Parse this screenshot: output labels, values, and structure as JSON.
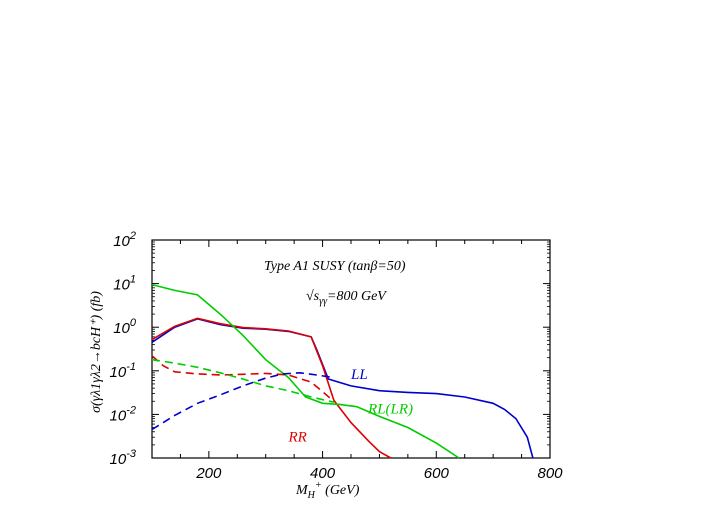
{
  "chart_data": {
    "type": "line",
    "title": "",
    "annotations": {
      "line1": "Type A1 SUSY (tanβ=50)",
      "line2": "√s",
      "line2_sub": "γγ",
      "line2_rest": "=800 GeV"
    },
    "xlabel": {
      "main": "M",
      "sub": "H",
      "sup": "+",
      "rest": " (GeV)"
    },
    "ylabel": "σ(γλ1γλ2→bcH⁺) (fb)",
    "xlim": [
      100,
      800
    ],
    "ylim_log10": [
      -3,
      2
    ],
    "yscale": "log",
    "x_ticks": [
      {
        "value": 200,
        "label": "200"
      },
      {
        "value": 400,
        "label": "400"
      },
      {
        "value": 600,
        "label": "600"
      },
      {
        "value": 800,
        "label": "800"
      }
    ],
    "y_ticks": [
      {
        "exp": 2,
        "base": "10",
        "sup": "2"
      },
      {
        "exp": 1,
        "base": "10",
        "sup": "1"
      },
      {
        "exp": 0,
        "base": "10",
        "sup": "0"
      },
      {
        "exp": -1,
        "base": "10",
        "sup": "-1"
      },
      {
        "exp": -2,
        "base": "10",
        "sup": "-2"
      },
      {
        "exp": -3,
        "base": "10",
        "sup": "-3"
      }
    ],
    "grid": false,
    "series": [
      {
        "name": "LL",
        "color": "#0000cc",
        "dash": false,
        "label_x": 450,
        "label_y": 0.065,
        "x": [
          100,
          140,
          180,
          220,
          260,
          300,
          340,
          380,
          390,
          410,
          450,
          500,
          550,
          600,
          650,
          700,
          720,
          740,
          760,
          770
        ],
        "y": [
          0.45,
          1.0,
          1.55,
          1.15,
          0.95,
          0.9,
          0.8,
          0.6,
          0.3,
          0.065,
          0.045,
          0.035,
          0.032,
          0.03,
          0.025,
          0.018,
          0.013,
          0.008,
          0.003,
          0.001
        ]
      },
      {
        "name": "RR",
        "color": "#dd0000",
        "dash": false,
        "label_x": 340,
        "label_y": 0.0024,
        "x": [
          100,
          140,
          180,
          220,
          260,
          300,
          340,
          380,
          400,
          420,
          450,
          480,
          500,
          520
        ],
        "y": [
          0.52,
          1.05,
          1.6,
          1.2,
          0.98,
          0.92,
          0.82,
          0.6,
          0.13,
          0.021,
          0.0065,
          0.0025,
          0.0014,
          0.001
        ]
      },
      {
        "name": "RL(LR)",
        "color": "#00cc00",
        "dash": false,
        "label_x": 480,
        "label_y": 0.0105,
        "x": [
          100,
          140,
          180,
          220,
          260,
          300,
          340,
          370,
          400,
          430,
          460,
          500,
          550,
          600,
          640
        ],
        "y": [
          9.5,
          7.0,
          5.5,
          2.0,
          0.65,
          0.18,
          0.07,
          0.025,
          0.018,
          0.017,
          0.015,
          0.009,
          0.005,
          0.0022,
          0.001
        ]
      },
      {
        "name": "",
        "color": "#dd0000",
        "dash": true,
        "x": [
          100,
          120,
          140,
          180,
          220,
          260,
          300,
          340,
          380,
          420
        ],
        "y": [
          0.22,
          0.13,
          0.095,
          0.085,
          0.08,
          0.083,
          0.087,
          0.08,
          0.055,
          0.02
        ]
      },
      {
        "name": "",
        "color": "#00cc00",
        "dash": true,
        "x": [
          100,
          140,
          180,
          220,
          260,
          300,
          340,
          380,
          420
        ],
        "y": [
          0.18,
          0.15,
          0.12,
          0.09,
          0.065,
          0.045,
          0.035,
          0.025,
          0.019
        ]
      },
      {
        "name": "",
        "color": "#0000cc",
        "dash": true,
        "x": [
          100,
          140,
          180,
          220,
          260,
          300,
          330,
          360,
          390,
          420
        ],
        "y": [
          0.0045,
          0.0095,
          0.018,
          0.028,
          0.045,
          0.068,
          0.085,
          0.09,
          0.08,
          0.07
        ]
      }
    ]
  }
}
